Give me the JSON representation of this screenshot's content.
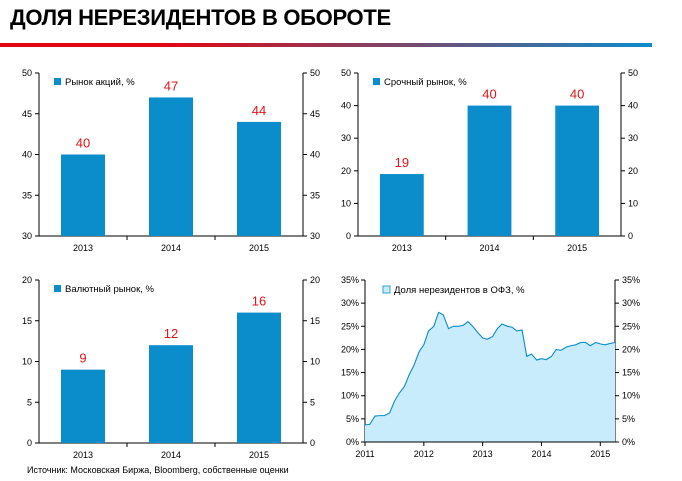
{
  "header": {
    "title": "ДОЛЯ НЕРЕЗИДЕНТОВ В ОБОРОТЕ"
  },
  "colors": {
    "bar": "#0b8ccb",
    "value_label": "#e0141a",
    "rule_left": "#e30613",
    "rule_right": "#0b8ccb",
    "area_fill": "#c8ecfb",
    "area_line": "#0b8ccb"
  },
  "footer": {
    "source": "Источник: Московская Биржа, Bloomberg, собственные оценки"
  },
  "chart_data": [
    {
      "type": "bar",
      "legend": "Рынок акций, %",
      "categories": [
        "2013",
        "2014",
        "2015"
      ],
      "values": [
        40,
        47,
        44
      ],
      "ylim": [
        30,
        50
      ],
      "yticks": [
        30,
        35,
        40,
        45,
        50
      ],
      "ytick_labels": [
        "30",
        "35",
        "40",
        "45",
        "50"
      ]
    },
    {
      "type": "bar",
      "legend": "Срочный рынок, %",
      "categories": [
        "2013",
        "2014",
        "2015"
      ],
      "values": [
        19,
        40,
        40
      ],
      "ylim": [
        0,
        50
      ],
      "yticks": [
        0,
        10,
        20,
        30,
        40,
        50
      ],
      "ytick_labels": [
        "0",
        "10",
        "20",
        "30",
        "40",
        "50"
      ]
    },
    {
      "type": "bar",
      "legend": "Валютный рынок, %",
      "categories": [
        "2013",
        "2014",
        "2015"
      ],
      "values": [
        9,
        12,
        16
      ],
      "ylim": [
        0,
        20
      ],
      "yticks": [
        0,
        5,
        10,
        15,
        20
      ],
      "ytick_labels": [
        "0",
        "5",
        "10",
        "15",
        "20"
      ]
    },
    {
      "type": "area",
      "legend": "Доля нерезидентов в ОФЗ, %",
      "x": [
        2011.0,
        2011.08,
        2011.17,
        2011.25,
        2011.33,
        2011.42,
        2011.5,
        2011.58,
        2011.67,
        2011.75,
        2011.83,
        2011.92,
        2012.0,
        2012.08,
        2012.17,
        2012.25,
        2012.33,
        2012.42,
        2012.5,
        2012.58,
        2012.67,
        2012.75,
        2012.83,
        2012.92,
        2013.0,
        2013.08,
        2013.17,
        2013.25,
        2013.33,
        2013.42,
        2013.5,
        2013.58,
        2013.67,
        2013.75,
        2013.83,
        2013.92,
        2014.0,
        2014.08,
        2014.17,
        2014.25,
        2014.33,
        2014.42,
        2014.5,
        2014.58,
        2014.67,
        2014.75,
        2014.83,
        2014.92,
        2015.0,
        2015.08,
        2015.17,
        2015.25
      ],
      "values": [
        3.7,
        3.8,
        5.6,
        5.7,
        5.7,
        6.3,
        8.8,
        10.5,
        12.0,
        14.5,
        16.5,
        19.5,
        21.0,
        24.0,
        25.0,
        28.0,
        27.5,
        24.5,
        25.0,
        25.0,
        25.2,
        26.0,
        25.0,
        23.6,
        22.5,
        22.2,
        22.8,
        24.5,
        25.5,
        25.0,
        24.8,
        24.0,
        24.2,
        18.5,
        19.0,
        17.7,
        18.0,
        17.8,
        18.5,
        20.0,
        19.8,
        20.5,
        20.8,
        21.0,
        21.5,
        21.5,
        20.8,
        21.5,
        21.2,
        21.0,
        21.3,
        21.5
      ],
      "xlim": [
        2011.0,
        2015.25
      ],
      "xticks": [
        2011,
        2012,
        2013,
        2014,
        2015
      ],
      "xtick_labels": [
        "2011",
        "2012",
        "2013",
        "2014",
        "2015"
      ],
      "ylim": [
        0,
        35
      ],
      "yticks": [
        0,
        5,
        10,
        15,
        20,
        25,
        30,
        35
      ],
      "ytick_labels": [
        "0%",
        "5%",
        "10%",
        "15%",
        "20%",
        "25%",
        "30%",
        "35%"
      ]
    }
  ]
}
